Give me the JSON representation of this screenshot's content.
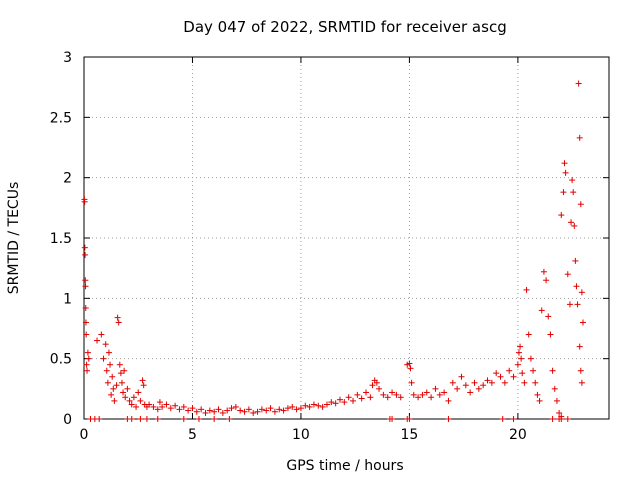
{
  "chart_data": {
    "type": "scatter",
    "title": "Day 047 of 2022, SRMTID for receiver ascg",
    "xlabel": "GPS time / hours",
    "ylabel": "SRMTID / TECUs",
    "xlim": [
      0,
      24.2
    ],
    "ylim": [
      0,
      3
    ],
    "xticks": [
      0,
      5,
      10,
      15,
      20
    ],
    "xtick_labels": [
      "0",
      "5",
      "10",
      "15",
      "20"
    ],
    "yticks": [
      0,
      0.5,
      1,
      1.5,
      2,
      2.5,
      3
    ],
    "ytick_labels": [
      "0",
      "0.5",
      "1",
      "1.5",
      "2",
      "2.5",
      "3"
    ],
    "grid": true,
    "marker": "+",
    "color": "#e00000",
    "series": [
      {
        "name": "SRMTID",
        "points": [
          [
            0.02,
            1.82
          ],
          [
            0.03,
            1.8
          ],
          [
            0.04,
            1.42
          ],
          [
            0.05,
            1.36
          ],
          [
            0.06,
            1.15
          ],
          [
            0.07,
            1.1
          ],
          [
            0.08,
            0.92
          ],
          [
            0.09,
            0.8
          ],
          [
            0.1,
            0.7
          ],
          [
            0.12,
            0.45
          ],
          [
            0.14,
            0.4
          ],
          [
            0.18,
            0.55
          ],
          [
            0.22,
            0.5
          ],
          [
            0.3,
            0.0
          ],
          [
            0.5,
            0.0
          ],
          [
            0.7,
            0.0
          ],
          [
            0.6,
            0.65
          ],
          [
            0.8,
            0.7
          ],
          [
            0.9,
            0.5
          ],
          [
            1.0,
            0.62
          ],
          [
            1.05,
            0.4
          ],
          [
            1.1,
            0.3
          ],
          [
            1.15,
            0.55
          ],
          [
            1.2,
            0.45
          ],
          [
            1.25,
            0.2
          ],
          [
            1.3,
            0.35
          ],
          [
            1.35,
            0.25
          ],
          [
            1.4,
            0.15
          ],
          [
            1.5,
            0.28
          ],
          [
            1.55,
            0.84
          ],
          [
            1.6,
            0.8
          ],
          [
            1.65,
            0.45
          ],
          [
            1.7,
            0.38
          ],
          [
            1.75,
            0.3
          ],
          [
            1.8,
            0.22
          ],
          [
            1.85,
            0.4
          ],
          [
            1.9,
            0.18
          ],
          [
            2.0,
            0.25
          ],
          [
            2.1,
            0.15
          ],
          [
            2.2,
            0.12
          ],
          [
            2.3,
            0.18
          ],
          [
            2.4,
            0.1
          ],
          [
            2.5,
            0.22
          ],
          [
            2.6,
            0.15
          ],
          [
            2.7,
            0.32
          ],
          [
            2.75,
            0.28
          ],
          [
            2.8,
            0.12
          ],
          [
            2.9,
            0.1
          ],
          [
            2.0,
            0.0
          ],
          [
            2.2,
            0.0
          ],
          [
            2.6,
            0.0
          ],
          [
            2.9,
            0.0
          ],
          [
            3.4,
            0.0
          ],
          [
            3.0,
            0.12
          ],
          [
            3.2,
            0.1
          ],
          [
            3.4,
            0.08
          ],
          [
            3.5,
            0.14
          ],
          [
            3.6,
            0.1
          ],
          [
            3.8,
            0.12
          ],
          [
            4.0,
            0.09
          ],
          [
            4.2,
            0.11
          ],
          [
            4.4,
            0.08
          ],
          [
            4.6,
            0.1
          ],
          [
            4.8,
            0.07
          ],
          [
            5.0,
            0.09
          ],
          [
            5.2,
            0.06
          ],
          [
            5.4,
            0.08
          ],
          [
            5.6,
            0.05
          ],
          [
            5.8,
            0.07
          ],
          [
            6.0,
            0.06
          ],
          [
            6.2,
            0.08
          ],
          [
            6.4,
            0.05
          ],
          [
            6.6,
            0.07
          ],
          [
            6.8,
            0.09
          ],
          [
            7.0,
            0.1
          ],
          [
            7.2,
            0.07
          ],
          [
            7.4,
            0.06
          ],
          [
            7.6,
            0.08
          ],
          [
            7.8,
            0.05
          ],
          [
            4.6,
            0.0
          ],
          [
            5.3,
            0.0
          ],
          [
            6.0,
            0.0
          ],
          [
            6.7,
            0.0
          ],
          [
            8.0,
            0.06
          ],
          [
            8.2,
            0.08
          ],
          [
            8.4,
            0.07
          ],
          [
            8.6,
            0.09
          ],
          [
            8.8,
            0.06
          ],
          [
            9.0,
            0.08
          ],
          [
            9.2,
            0.07
          ],
          [
            9.4,
            0.09
          ],
          [
            9.6,
            0.1
          ],
          [
            9.8,
            0.08
          ],
          [
            10.0,
            0.09
          ],
          [
            10.2,
            0.11
          ],
          [
            10.4,
            0.1
          ],
          [
            10.6,
            0.12
          ],
          [
            10.8,
            0.11
          ],
          [
            11.0,
            0.1
          ],
          [
            11.2,
            0.12
          ],
          [
            11.4,
            0.14
          ],
          [
            11.6,
            0.13
          ],
          [
            11.8,
            0.16
          ],
          [
            12.0,
            0.14
          ],
          [
            12.2,
            0.18
          ],
          [
            12.4,
            0.15
          ],
          [
            12.6,
            0.2
          ],
          [
            12.8,
            0.17
          ],
          [
            13.0,
            0.22
          ],
          [
            13.2,
            0.18
          ],
          [
            13.3,
            0.28
          ],
          [
            13.4,
            0.32
          ],
          [
            13.5,
            0.3
          ],
          [
            13.6,
            0.25
          ],
          [
            13.8,
            0.2
          ],
          [
            14.0,
            0.18
          ],
          [
            14.2,
            0.22
          ],
          [
            14.4,
            0.2
          ],
          [
            14.6,
            0.18
          ],
          [
            14.1,
            0.0
          ],
          [
            14.2,
            0.0
          ],
          [
            14.9,
            0.0
          ],
          [
            15.0,
            0.0
          ],
          [
            16.8,
            0.0
          ],
          [
            19.3,
            0.0
          ],
          [
            19.8,
            0.0
          ],
          [
            14.9,
            0.45
          ],
          [
            15.0,
            0.46
          ],
          [
            15.05,
            0.42
          ],
          [
            15.1,
            0.3
          ],
          [
            15.2,
            0.2
          ],
          [
            15.4,
            0.18
          ],
          [
            15.6,
            0.2
          ],
          [
            15.8,
            0.22
          ],
          [
            16.0,
            0.18
          ],
          [
            16.2,
            0.25
          ],
          [
            16.4,
            0.2
          ],
          [
            16.6,
            0.22
          ],
          [
            16.8,
            0.15
          ],
          [
            17.0,
            0.3
          ],
          [
            17.2,
            0.25
          ],
          [
            17.4,
            0.35
          ],
          [
            17.6,
            0.28
          ],
          [
            17.8,
            0.22
          ],
          [
            18.0,
            0.3
          ],
          [
            18.2,
            0.25
          ],
          [
            18.4,
            0.28
          ],
          [
            18.6,
            0.32
          ],
          [
            18.8,
            0.3
          ],
          [
            19.0,
            0.38
          ],
          [
            19.2,
            0.35
          ],
          [
            19.4,
            0.3
          ],
          [
            19.6,
            0.4
          ],
          [
            19.8,
            0.35
          ],
          [
            20.0,
            0.45
          ],
          [
            20.05,
            0.55
          ],
          [
            20.1,
            0.6
          ],
          [
            20.15,
            0.5
          ],
          [
            20.2,
            0.38
          ],
          [
            20.3,
            0.3
          ],
          [
            20.4,
            1.07
          ],
          [
            20.5,
            0.7
          ],
          [
            20.6,
            0.5
          ],
          [
            20.7,
            0.4
          ],
          [
            20.8,
            0.3
          ],
          [
            20.9,
            0.2
          ],
          [
            21.0,
            0.15
          ],
          [
            21.1,
            0.9
          ],
          [
            21.2,
            1.22
          ],
          [
            21.3,
            1.15
          ],
          [
            21.4,
            0.85
          ],
          [
            21.5,
            0.7
          ],
          [
            21.6,
            0.4
          ],
          [
            21.7,
            0.25
          ],
          [
            21.8,
            0.15
          ],
          [
            21.9,
            0.05
          ],
          [
            22.0,
            0.02
          ],
          [
            21.6,
            0.0
          ],
          [
            21.9,
            0.0
          ],
          [
            22.0,
            0.0
          ],
          [
            22.3,
            0.0
          ],
          [
            22.0,
            1.69
          ],
          [
            22.1,
            1.88
          ],
          [
            22.15,
            2.12
          ],
          [
            22.2,
            2.04
          ],
          [
            22.3,
            1.2
          ],
          [
            22.4,
            0.95
          ],
          [
            22.45,
            1.63
          ],
          [
            22.5,
            1.98
          ],
          [
            22.55,
            1.88
          ],
          [
            22.6,
            1.6
          ],
          [
            22.65,
            1.31
          ],
          [
            22.7,
            1.1
          ],
          [
            22.75,
            0.95
          ],
          [
            22.8,
            2.78
          ],
          [
            22.85,
            2.33
          ],
          [
            22.9,
            1.78
          ],
          [
            22.95,
            1.05
          ],
          [
            23.0,
            0.8
          ],
          [
            22.85,
            0.6
          ],
          [
            22.9,
            0.4
          ],
          [
            22.95,
            0.3
          ]
        ]
      }
    ]
  }
}
